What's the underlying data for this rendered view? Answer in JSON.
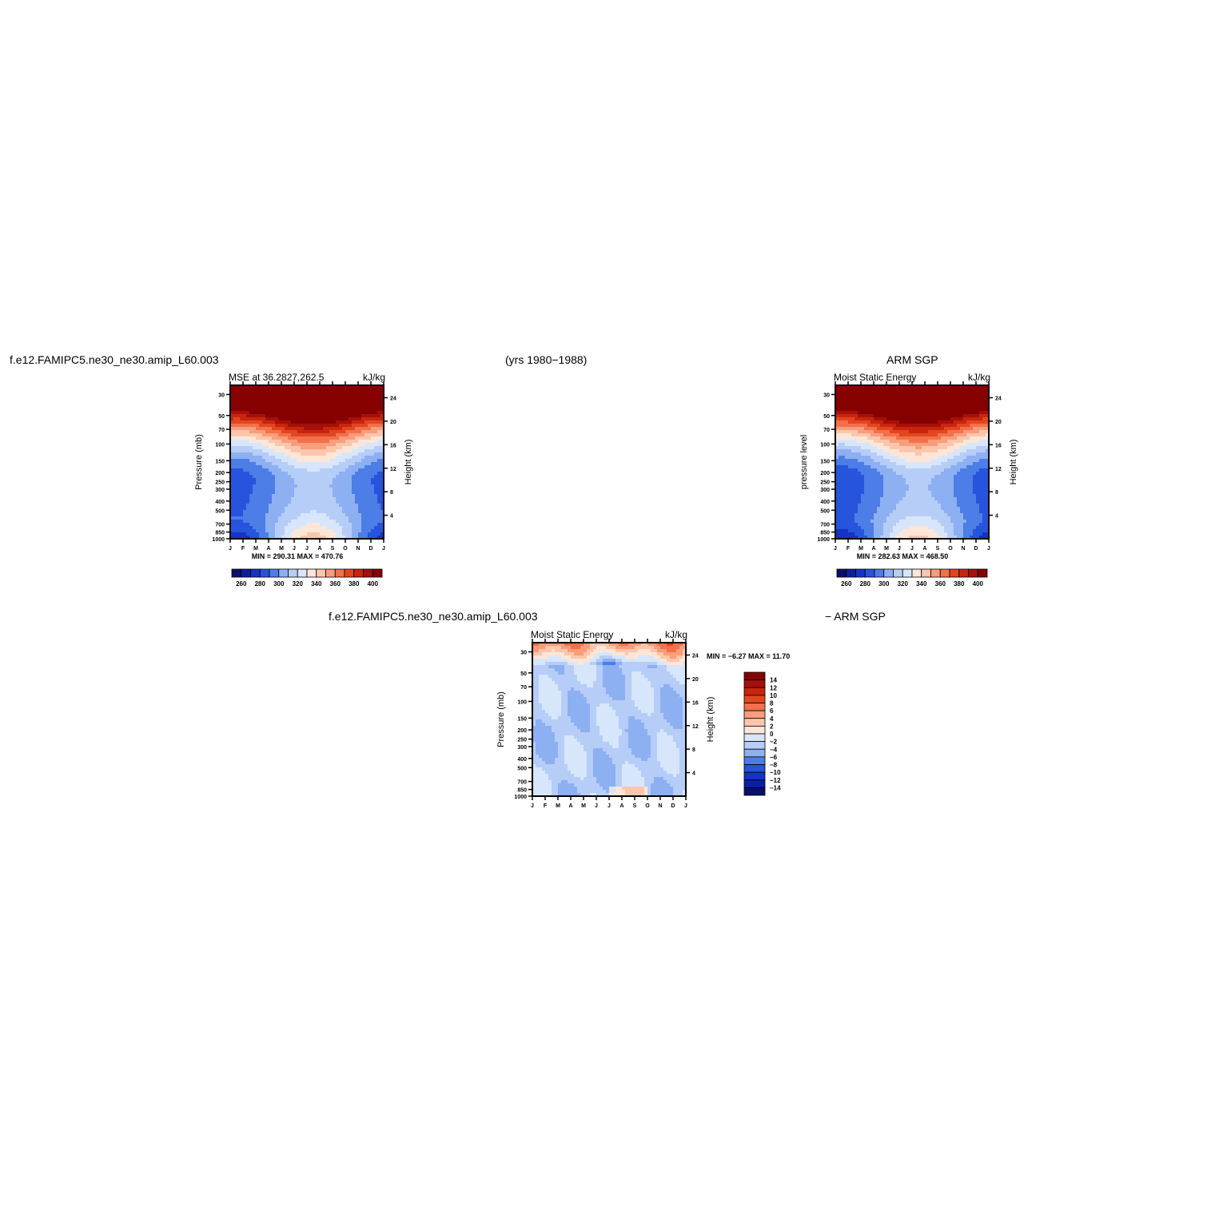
{
  "header": {
    "left_case": "f.e12.FAMIPC5.ne30_ne30.amip_L60.003",
    "years": "(yrs 1980−1988)",
    "right_obs": "ARM SGP",
    "diff_case": "f.e12.FAMIPC5.ne30_ne30.amip_L60.003",
    "diff_obs": "− ARM SGP"
  },
  "palettes": {
    "mse": [
      "#08106b",
      "#0c1f9c",
      "#1533c4",
      "#2654dc",
      "#4d7de6",
      "#8db0f3",
      "#b6cdf8",
      "#d7e6fb",
      "#fde6d8",
      "#fcc6ad",
      "#f99d7a",
      "#f2704c",
      "#e2461f",
      "#c9250e",
      "#a4100b",
      "#870000"
    ],
    "diff": [
      "#08106b",
      "#0c1f9c",
      "#1533c4",
      "#2654dc",
      "#4d7de6",
      "#8db0f3",
      "#b6cdf8",
      "#d7e6fb",
      "#fde6d8",
      "#fcc6ad",
      "#f99d7a",
      "#f2704c",
      "#e2461f",
      "#c9250e",
      "#a4100b",
      "#870000"
    ]
  },
  "chart_data": [
    {
      "type": "heatmap",
      "title": "MSE at 36.2827,262.5",
      "units": "kJ/kg",
      "ylabel": "Pressure (mb)",
      "y2label": "Height (km)",
      "minmax": "MIN = 290.31 MAX = 470.76",
      "x_ticks": [
        "J",
        "F",
        "M",
        "A",
        "M",
        "J",
        "J",
        "A",
        "S",
        "O",
        "N",
        "D",
        "J"
      ],
      "y_ticks": [
        "30",
        "50",
        "70",
        "100",
        "150",
        "200",
        "250",
        "300",
        "400",
        "500",
        "700",
        "850",
        "1000"
      ],
      "y2_ticks": [
        "24",
        "20",
        "16",
        "12",
        "8",
        "4"
      ],
      "colorbar_labels": [
        "260",
        "280",
        "300",
        "320",
        "340",
        "360",
        "380",
        "400"
      ],
      "levels": [
        250,
        260,
        270,
        280,
        290,
        300,
        310,
        320,
        330,
        340,
        350,
        360,
        370,
        380,
        390,
        400
      ],
      "grid": false
    },
    {
      "type": "heatmap",
      "title": "Moist Static Energy",
      "units": "kJ/kg",
      "ylabel": "pressure level",
      "y2label": "Height (km)",
      "minmax": "MIN = 282.63 MAX = 468.50",
      "x_ticks": [
        "J",
        "F",
        "M",
        "A",
        "M",
        "J",
        "J",
        "A",
        "S",
        "O",
        "N",
        "D",
        "J"
      ],
      "y_ticks": [
        "30",
        "50",
        "70",
        "100",
        "150",
        "200",
        "250",
        "300",
        "400",
        "500",
        "700",
        "850",
        "1000"
      ],
      "y2_ticks": [
        "24",
        "20",
        "16",
        "12",
        "8",
        "4"
      ],
      "colorbar_labels": [
        "260",
        "280",
        "300",
        "320",
        "340",
        "360",
        "380",
        "400"
      ],
      "levels": [
        250,
        260,
        270,
        280,
        290,
        300,
        310,
        320,
        330,
        340,
        350,
        360,
        370,
        380,
        390,
        400
      ],
      "grid": false
    },
    {
      "type": "heatmap",
      "title": "Moist Static Energy",
      "units": "kJ/kg",
      "ylabel": "Pressure (mb)",
      "y2label": "Height (km)",
      "minmax": "MIN =   −6.27 MAX =   11.70",
      "x_ticks": [
        "J",
        "F",
        "M",
        "A",
        "M",
        "J",
        "J",
        "A",
        "S",
        "O",
        "N",
        "D",
        "J"
      ],
      "y_ticks": [
        "30",
        "50",
        "70",
        "100",
        "150",
        "200",
        "250",
        "300",
        "400",
        "500",
        "700",
        "850",
        "1000"
      ],
      "y2_ticks": [
        "24",
        "20",
        "16",
        "12",
        "8",
        "4"
      ],
      "colorbar_labels": [
        "14",
        "12",
        "10",
        "8",
        "6",
        "4",
        "2",
        "0",
        "−2",
        "−4",
        "−6",
        "−8",
        "−10",
        "−12",
        "−14"
      ],
      "levels": [
        -14,
        -12,
        -10,
        -8,
        -6,
        -4,
        -2,
        0,
        2,
        4,
        6,
        8,
        10,
        12,
        14
      ],
      "grid": false
    }
  ]
}
